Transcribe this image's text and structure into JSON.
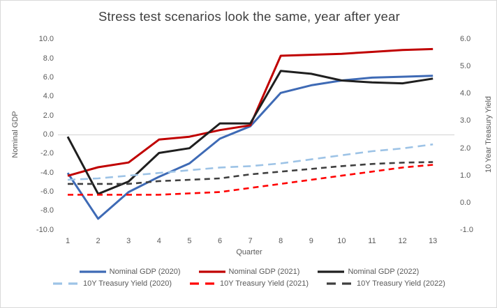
{
  "title": "Stress test scenarios look the same, year after year",
  "chart_data": {
    "type": "line",
    "title": "Stress test scenarios look the same, year after year",
    "x": {
      "label": "Quarter",
      "categories": [
        "1",
        "2",
        "3",
        "4",
        "5",
        "6",
        "7",
        "8",
        "9",
        "10",
        "11",
        "12",
        "13"
      ]
    },
    "axes": {
      "left": {
        "label": "Nominal GDP",
        "min": -10,
        "max": 10,
        "ticks": [
          10,
          8,
          6,
          4,
          2,
          0,
          -2,
          -4,
          -6,
          -8,
          -10
        ]
      },
      "right": {
        "label": "10 Year Treasury Yield",
        "min": -1,
        "max": 6,
        "ticks": [
          6,
          5,
          4,
          3,
          2,
          1,
          0,
          -1
        ]
      }
    },
    "grid": "horizontal zero line only",
    "legend_position": "bottom",
    "series": [
      {
        "name": "Nominal GDP (2020)",
        "axis": "left",
        "style": "solid",
        "color": "#3E6AB5",
        "values": [
          -4.0,
          -8.8,
          -6.0,
          -4.4,
          -3.0,
          -0.4,
          0.9,
          4.4,
          5.2,
          5.7,
          6.0,
          6.1,
          6.2
        ]
      },
      {
        "name": "Nominal GDP (2021)",
        "axis": "left",
        "style": "solid",
        "color": "#C00000",
        "values": [
          -4.3,
          -3.4,
          -2.9,
          -0.5,
          -0.2,
          0.5,
          1.0,
          8.3,
          8.4,
          8.5,
          8.7,
          8.9,
          9.0
        ]
      },
      {
        "name": "Nominal GDP (2022)",
        "axis": "left",
        "style": "solid",
        "color": "#1F1F1F",
        "values": [
          -0.2,
          -6.2,
          -4.9,
          -1.9,
          -1.4,
          1.2,
          1.2,
          6.7,
          6.4,
          5.7,
          5.5,
          5.4,
          5.9
        ]
      },
      {
        "name": "10Y Treasury Yield (2020)",
        "axis": "right",
        "style": "dashed",
        "color": "#9DC3E6",
        "values": [
          0.85,
          0.9,
          1.0,
          1.1,
          1.2,
          1.3,
          1.35,
          1.45,
          1.6,
          1.75,
          1.9,
          2.0,
          2.15
        ]
      },
      {
        "name": "10Y Treasury Yield (2021)",
        "axis": "right",
        "style": "dashed",
        "color": "#FF0000",
        "values": [
          0.3,
          0.3,
          0.3,
          0.3,
          0.35,
          0.4,
          0.55,
          0.7,
          0.85,
          1.0,
          1.15,
          1.3,
          1.4
        ]
      },
      {
        "name": "10Y Treasury Yield (2022)",
        "axis": "right",
        "style": "dashed",
        "color": "#3F3F3F",
        "values": [
          0.7,
          0.7,
          0.7,
          0.8,
          0.85,
          0.9,
          1.05,
          1.15,
          1.25,
          1.35,
          1.43,
          1.48,
          1.5
        ]
      }
    ]
  },
  "colors": {
    "gridline": "#D9D9D9",
    "frame_border": "#D9D9D9",
    "title_text": "#404040",
    "axis_text": "#595959"
  }
}
